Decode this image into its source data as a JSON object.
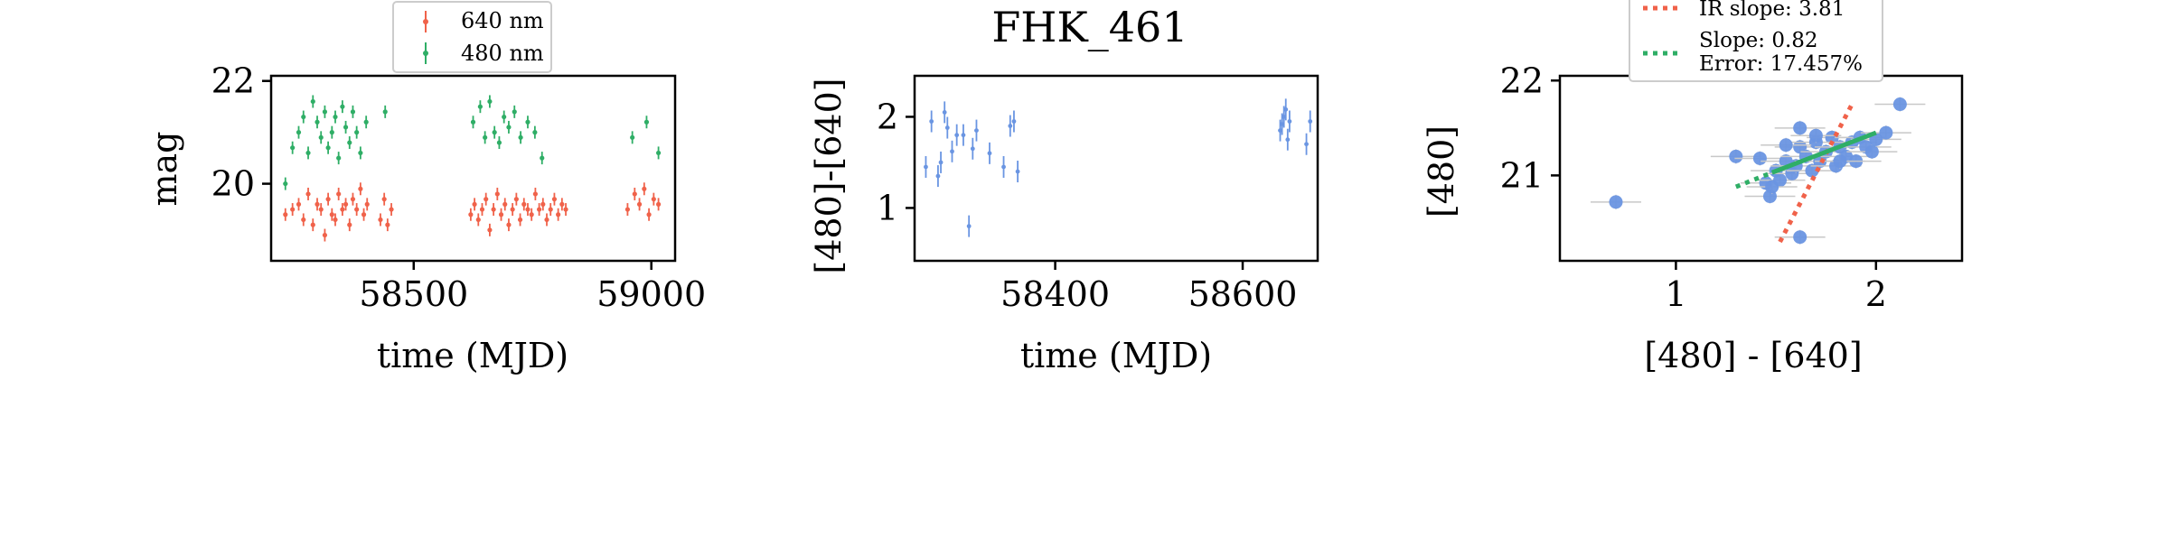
{
  "title": "FHK_461",
  "colors": {
    "red": "#f0624a",
    "green": "#2fae66",
    "blue": "#6a95e2",
    "errorbar_grey": "#c8c8c8"
  },
  "chart_data": [
    {
      "type": "scatter",
      "xlabel": "time (MJD)",
      "ylabel": "mag",
      "xlim": [
        58200,
        59050
      ],
      "ylim": [
        22.1,
        18.5
      ],
      "y_inverted": true,
      "xticks": [
        58500,
        59000
      ],
      "yticks": [
        20,
        22
      ],
      "legend": {
        "placement": "top-center-above",
        "entries": [
          "640 nm",
          "480 nm"
        ]
      },
      "series": [
        {
          "name": "640 nm",
          "color": "#f0624a",
          "x": [
            58230,
            58245,
            58258,
            58268,
            58278,
            58288,
            58297,
            58305,
            58313,
            58320,
            58328,
            58335,
            58342,
            58350,
            58357,
            58365,
            58372,
            58380,
            58388,
            58395,
            58402,
            58430,
            58438,
            58445,
            58453,
            58620,
            58628,
            58636,
            58644,
            58652,
            58660,
            58668,
            58676,
            58684,
            58692,
            58700,
            58708,
            58716,
            58724,
            58732,
            58740,
            58748,
            58756,
            58764,
            58772,
            58780,
            58788,
            58796,
            58804,
            58812,
            58820,
            58950,
            58965,
            58975,
            58985,
            58995,
            59005,
            59015
          ],
          "y": [
            19.4,
            19.5,
            19.6,
            19.3,
            19.8,
            19.2,
            19.6,
            19.5,
            19.0,
            19.7,
            19.4,
            19.3,
            19.8,
            19.5,
            19.6,
            19.2,
            19.7,
            19.5,
            19.9,
            19.4,
            19.6,
            19.3,
            19.7,
            19.2,
            19.5,
            19.4,
            19.6,
            19.3,
            19.5,
            19.7,
            19.1,
            19.5,
            19.8,
            19.4,
            19.6,
            19.2,
            19.5,
            19.7,
            19.3,
            19.6,
            19.5,
            19.4,
            19.8,
            19.5,
            19.6,
            19.3,
            19.5,
            19.7,
            19.4,
            19.6,
            19.5,
            19.5,
            19.8,
            19.6,
            19.9,
            19.4,
            19.7,
            19.6
          ]
        },
        {
          "name": "480 nm",
          "color": "#2fae66",
          "x": [
            58230,
            58245,
            58258,
            58268,
            58278,
            58288,
            58297,
            58305,
            58313,
            58320,
            58328,
            58335,
            58342,
            58350,
            58357,
            58365,
            58372,
            58380,
            58388,
            58400,
            58440,
            58625,
            58640,
            58650,
            58660,
            58670,
            58680,
            58690,
            58700,
            58712,
            58725,
            58740,
            58755,
            58770,
            58960,
            58990,
            59015
          ],
          "y": [
            20.0,
            20.7,
            21.0,
            21.3,
            20.6,
            21.6,
            21.2,
            20.9,
            21.4,
            20.7,
            21.0,
            21.3,
            20.5,
            21.5,
            21.1,
            20.8,
            21.4,
            21.0,
            20.6,
            21.2,
            21.4,
            21.2,
            21.5,
            20.9,
            21.6,
            21.0,
            20.8,
            21.3,
            21.1,
            21.4,
            20.9,
            21.2,
            21.0,
            20.5,
            20.9,
            21.2,
            20.6
          ]
        }
      ]
    },
    {
      "type": "scatter",
      "xlabel": "time (MJD)",
      "ylabel": "[480]-[640]",
      "xlim": [
        58250,
        58680
      ],
      "ylim": [
        2.45,
        0.42
      ],
      "y_inverted": true,
      "xticks": [
        58400,
        58600
      ],
      "yticks": [
        1,
        2
      ],
      "series": [
        {
          "name": "",
          "color": "#6a95e2",
          "x": [
            58262,
            58268,
            58275,
            58278,
            58282,
            58285,
            58290,
            58295,
            58302,
            58308,
            58312,
            58316,
            58330,
            58345,
            58352,
            58356,
            58360,
            58640,
            58642,
            58644,
            58646,
            58648,
            58650,
            58668,
            58672
          ],
          "y": [
            1.45,
            1.95,
            1.35,
            1.5,
            2.05,
            1.88,
            1.62,
            1.8,
            1.8,
            0.8,
            1.65,
            1.85,
            1.6,
            1.45,
            1.9,
            1.95,
            1.4,
            1.85,
            1.92,
            2.0,
            2.08,
            1.75,
            1.95,
            1.7,
            1.95
          ]
        }
      ]
    },
    {
      "type": "scatter",
      "xlabel": "[480] - [640]",
      "ylabel": "[480]",
      "xlim": [
        0.42,
        2.43
      ],
      "ylim": [
        22.05,
        20.1
      ],
      "y_inverted": true,
      "xticks": [
        1,
        2
      ],
      "yticks": [
        21,
        22
      ],
      "legend": {
        "placement": "top-center-above",
        "entries": [
          "IR slope: 3.81",
          "Slope: 0.82",
          "Error: 17.457%"
        ]
      },
      "fit_lines": [
        {
          "label": "IR slope: 3.81",
          "color": "#f0624a",
          "style": "dotted",
          "x": [
            1.52,
            1.88
          ],
          "y": [
            20.3,
            21.75
          ]
        },
        {
          "label": "Slope: 0.82",
          "color": "#2fae66",
          "style": "dotted",
          "x": [
            1.3,
            1.48
          ],
          "y": [
            20.88,
            21.03
          ]
        },
        {
          "label": "Slope: 0.82",
          "color": "#2fae66",
          "style": "solid",
          "x": [
            1.48,
            2.0
          ],
          "y": [
            21.03,
            21.45
          ]
        }
      ],
      "series": [
        {
          "name": "",
          "color": "#6a95e2",
          "x": [
            0.7,
            1.62,
            1.3,
            1.42,
            1.45,
            1.47,
            1.5,
            1.52,
            1.55,
            1.58,
            1.6,
            1.62,
            1.65,
            1.68,
            1.7,
            1.72,
            1.75,
            1.78,
            1.8,
            1.82,
            1.85,
            1.88,
            1.9,
            1.92,
            1.95,
            1.98,
            2.0,
            2.05,
            2.12,
            1.62,
            1.7,
            1.82,
            1.55,
            1.48
          ],
          "y": [
            20.72,
            20.35,
            21.2,
            21.18,
            20.92,
            20.78,
            21.05,
            20.95,
            21.15,
            21.02,
            21.1,
            21.3,
            21.2,
            21.05,
            21.35,
            21.15,
            21.25,
            21.4,
            21.1,
            21.3,
            21.2,
            21.35,
            21.15,
            21.4,
            21.3,
            21.25,
            21.38,
            21.45,
            21.75,
            21.5,
            21.42,
            21.15,
            21.32,
            20.88
          ]
        }
      ]
    }
  ]
}
